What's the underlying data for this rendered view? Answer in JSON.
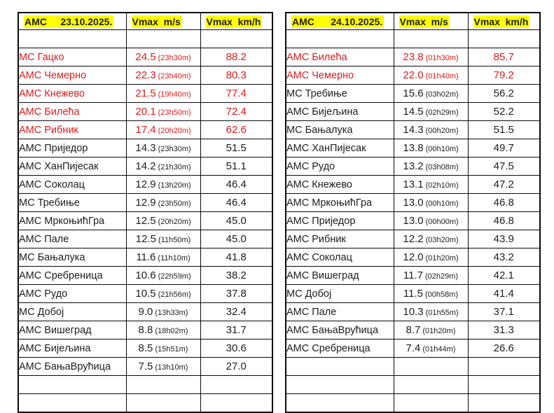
{
  "colors": {
    "highlight_yellow": "#ffff00",
    "alert_red": "#e01b1b",
    "text_black": "#1d1d1d",
    "border_black": "#0a0a0a"
  },
  "tables": [
    {
      "header": {
        "title": "АМС     23.10.2025.",
        "vmax_ms": "Vmax  m/s",
        "vmax_kmh": "Vmax  km/h"
      },
      "rows": [
        {
          "station": "",
          "value": "",
          "time": "",
          "kmh": "",
          "red": false
        },
        {
          "station": "МС Гацко",
          "value": "24.5",
          "time": "(23h30m)",
          "kmh": "88.2",
          "red": true
        },
        {
          "station": "АМС Чемерно",
          "value": "22.3",
          "time": "(23h40m)",
          "kmh": "80.3",
          "red": true
        },
        {
          "station": "АМС Кнежево",
          "value": "21.5",
          "time": "(19h40m)",
          "kmh": "77.4",
          "red": true
        },
        {
          "station": "АМС Билећа",
          "value": "20.1",
          "time": "(23h50m)",
          "kmh": "72.4",
          "red": true
        },
        {
          "station": "АМС Рибник",
          "value": "17.4",
          "time": "(20h20m)",
          "kmh": "62.6",
          "red": true
        },
        {
          "station": "АМС Приједор",
          "value": "14.3",
          "time": "(23h30m)",
          "kmh": "51.5",
          "red": false
        },
        {
          "station": "АМС ХанПијесак",
          "value": "14.2",
          "time": "(21h30m)",
          "kmh": "51.1",
          "red": false
        },
        {
          "station": "АМС Соколац",
          "value": "12.9",
          "time": "(13h20m)",
          "kmh": "46.4",
          "red": false
        },
        {
          "station": "МС Требиње",
          "value": "12.9",
          "time": "(23h50m)",
          "kmh": "46.4",
          "red": false
        },
        {
          "station": "АМС МркоњићГра",
          "value": "12.5",
          "time": "(20h20m)",
          "kmh": "45.0",
          "red": false
        },
        {
          "station": "АМС Пале",
          "value": "12.5",
          "time": "(11h50m)",
          "kmh": "45.0",
          "red": false
        },
        {
          "station": "МС Бањалука",
          "value": "11.6",
          "time": "(11h10m)",
          "kmh": "41.8",
          "red": false
        },
        {
          "station": "АМС Сребреница",
          "value": "10.6",
          "time": "(22h59m)",
          "kmh": "38.2",
          "red": false
        },
        {
          "station": "АМС Рудо",
          "value": "10.5",
          "time": "(21h56m)",
          "kmh": "37.8",
          "red": false
        },
        {
          "station": "МС Добој",
          "value": "9.0",
          "time": "(13h33m)",
          "kmh": "32.4",
          "red": false
        },
        {
          "station": "АМС Вишеград",
          "value": "8.8",
          "time": "(18h02m)",
          "kmh": "31.7",
          "red": false
        },
        {
          "station": "АМС Бијељина",
          "value": "8.5",
          "time": "(15h51m)",
          "kmh": "30.6",
          "red": false
        },
        {
          "station": "АМС БањаВрућица",
          "value": "7.5",
          "time": "(13h10m)",
          "kmh": "27.0",
          "red": false
        },
        {
          "station": "",
          "value": "",
          "time": "",
          "kmh": "",
          "red": false
        },
        {
          "station": "",
          "value": "",
          "time": "",
          "kmh": "",
          "red": false
        }
      ]
    },
    {
      "header": {
        "title": "АМС      24.10.2025.",
        "vmax_ms": "Vmax  m/s",
        "vmax_kmh": "Vmax  km/h"
      },
      "rows": [
        {
          "station": "",
          "value": "",
          "time": "",
          "kmh": "",
          "red": false
        },
        {
          "station": "АМС Билећа",
          "value": "23.8",
          "time": "(01h30m)",
          "kmh": "85.7",
          "red": true
        },
        {
          "station": "АМС Чемерно",
          "value": "22.0",
          "time": "(01h40m)",
          "kmh": "79.2",
          "red": true
        },
        {
          "station": "МС Требиње",
          "value": "15.6",
          "time": "(03h02m)",
          "kmh": "56.2",
          "red": false
        },
        {
          "station": "АМС Бијељина",
          "value": "14.5",
          "time": "(02h29m)",
          "kmh": "52.2",
          "red": false
        },
        {
          "station": "МС Бањалука",
          "value": "14.3",
          "time": "(00h20m)",
          "kmh": "51.5",
          "red": false
        },
        {
          "station": "АМС ХанПијесак",
          "value": "13.8",
          "time": "(00h10m)",
          "kmh": "49.7",
          "red": false
        },
        {
          "station": "АМС Рудо",
          "value": "13.2",
          "time": "(03h08m)",
          "kmh": "47.5",
          "red": false
        },
        {
          "station": "АМС Кнежево",
          "value": "13.1",
          "time": "(02h10m)",
          "kmh": "47.2",
          "red": false
        },
        {
          "station": "АМС МркоњићГра",
          "value": "13.0",
          "time": "(00h10m)",
          "kmh": "46.8",
          "red": false
        },
        {
          "station": "АМС Приједор",
          "value": "13.0",
          "time": "(00h00m)",
          "kmh": "46.8",
          "red": false
        },
        {
          "station": "АМС Рибник",
          "value": "12.2",
          "time": "(03h20m)",
          "kmh": "43.9",
          "red": false
        },
        {
          "station": "АМС Соколац",
          "value": "12.0",
          "time": "(01h20m)",
          "kmh": "43.2",
          "red": false
        },
        {
          "station": "АМС Вишеград",
          "value": "11.7",
          "time": "(02h29m)",
          "kmh": "42.1",
          "red": false
        },
        {
          "station": "МС Добој",
          "value": "11.5",
          "time": "(00h58m)",
          "kmh": "41.4",
          "red": false
        },
        {
          "station": "АМС Пале",
          "value": "10.3",
          "time": "(01h55m)",
          "kmh": "37.1",
          "red": false
        },
        {
          "station": "АМС БањаВрућица",
          "value": "8.7",
          "time": "(01h20m)",
          "kmh": "31.3",
          "red": false
        },
        {
          "station": "АМС Сребреница",
          "value": "7.4",
          "time": "(01h44m)",
          "kmh": "26.6",
          "red": false
        },
        {
          "station": "",
          "value": "",
          "time": "",
          "kmh": "",
          "red": false
        },
        {
          "station": "",
          "value": "",
          "time": "",
          "kmh": "",
          "red": false
        },
        {
          "station": "",
          "value": "",
          "time": "",
          "kmh": "",
          "red": false
        }
      ]
    }
  ]
}
